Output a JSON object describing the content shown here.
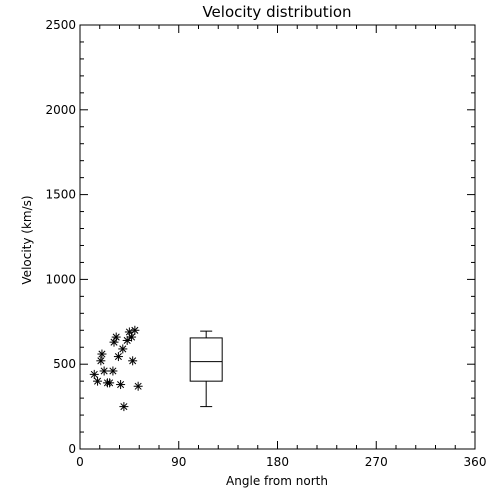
{
  "chart_data": {
    "type": "scatter",
    "title": "Velocity distribution",
    "xlabel": "Angle from north",
    "ylabel": "Velocity (km/s)",
    "xlim": [
      0,
      360
    ],
    "ylim": [
      0,
      2500
    ],
    "xticks": [
      "0",
      "90",
      "180",
      "270",
      "360"
    ],
    "yticks": [
      "0",
      "500",
      "1000",
      "1500",
      "2000",
      "2500"
    ],
    "grid": false,
    "marker": "asterisk",
    "series": [
      {
        "type": "scatter",
        "points": [
          {
            "x": 13,
            "y": 440
          },
          {
            "x": 16,
            "y": 400
          },
          {
            "x": 19,
            "y": 520
          },
          {
            "x": 20,
            "y": 560
          },
          {
            "x": 22,
            "y": 460
          },
          {
            "x": 25,
            "y": 390
          },
          {
            "x": 27,
            "y": 390
          },
          {
            "x": 30,
            "y": 460
          },
          {
            "x": 31,
            "y": 630
          },
          {
            "x": 33,
            "y": 660
          },
          {
            "x": 35,
            "y": 545
          },
          {
            "x": 37,
            "y": 380
          },
          {
            "x": 39,
            "y": 590
          },
          {
            "x": 40,
            "y": 250
          },
          {
            "x": 43,
            "y": 640
          },
          {
            "x": 45,
            "y": 690
          },
          {
            "x": 47,
            "y": 660
          },
          {
            "x": 48,
            "y": 520
          },
          {
            "x": 50,
            "y": 700
          },
          {
            "x": 53,
            "y": 370
          }
        ]
      },
      {
        "type": "box",
        "x": 115,
        "min": 250,
        "q1": 400,
        "median": 515,
        "q3": 655,
        "max": 695
      }
    ]
  }
}
